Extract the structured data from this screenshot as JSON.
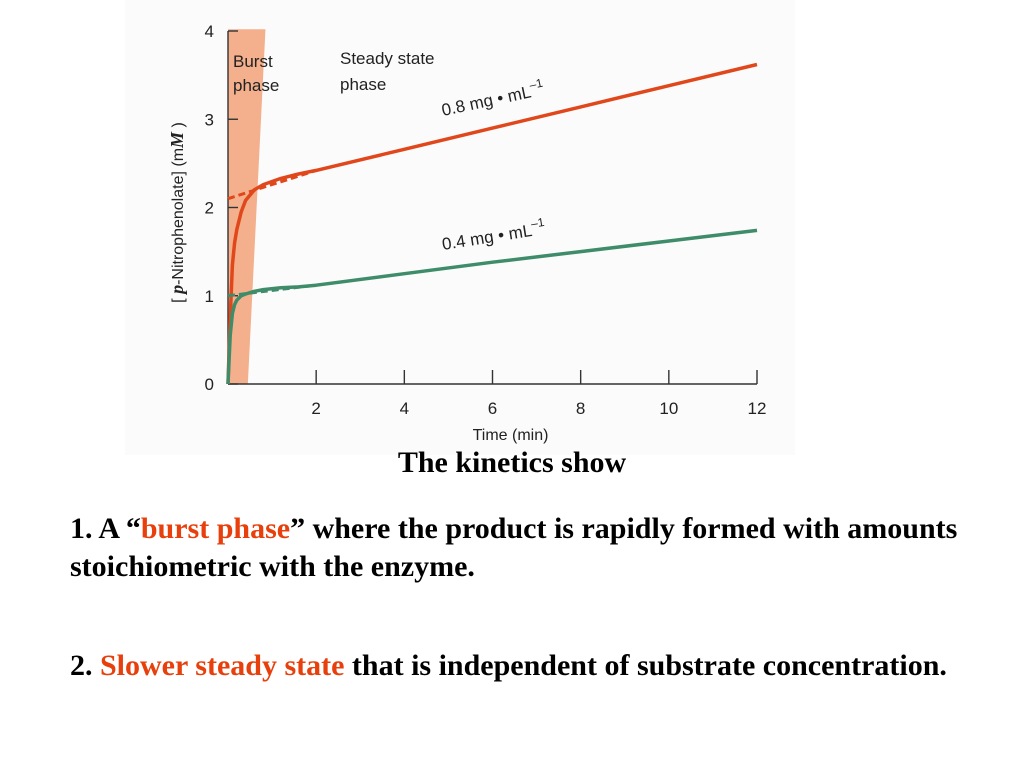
{
  "chart_data": {
    "type": "line",
    "title": "",
    "xlabel": "Time (min)",
    "ylabel": "[p-Nitrophenolate] (mM)",
    "ylabel_parts": [
      "[ ",
      "p",
      "-Nitrophenolate] (m",
      "M",
      " )"
    ],
    "xlim": [
      0,
      12
    ],
    "ylim": [
      0,
      4
    ],
    "x_ticks": [
      2,
      4,
      6,
      8,
      10,
      12
    ],
    "y_ticks": [
      0,
      1,
      2,
      3,
      4
    ],
    "grid": false,
    "regions": [
      {
        "label_line1": "Burst",
        "label_line2": "phase",
        "color": "#f4b08c"
      },
      {
        "label_line1": "Steady state",
        "label_line2": "phase"
      }
    ],
    "series": [
      {
        "name": "0.8 mg • mL",
        "superscript": "–1",
        "color": "#e0481c",
        "x": [
          0,
          0.05,
          0.1,
          0.15,
          0.2,
          0.3,
          0.4,
          0.6,
          0.8,
          1.2,
          1.6,
          2,
          4,
          6,
          8,
          10,
          12
        ],
        "y": [
          0,
          0.75,
          1.35,
          1.6,
          1.75,
          1.95,
          2.08,
          2.2,
          2.26,
          2.33,
          2.38,
          2.42,
          2.66,
          2.9,
          3.14,
          3.38,
          3.62
        ],
        "extrapolation": {
          "x": [
            0,
            2
          ],
          "y": [
            2.1,
            2.42
          ]
        }
      },
      {
        "name": "0.4 mg • mL",
        "superscript": "–1",
        "color": "#3f8c6a",
        "x": [
          0,
          0.05,
          0.1,
          0.15,
          0.2,
          0.3,
          0.4,
          0.6,
          0.8,
          1.2,
          1.6,
          2,
          4,
          6,
          8,
          10,
          12
        ],
        "y": [
          0,
          0.55,
          0.8,
          0.9,
          0.95,
          1.0,
          1.02,
          1.05,
          1.07,
          1.09,
          1.1,
          1.12,
          1.25,
          1.38,
          1.5,
          1.62,
          1.74
        ],
        "extrapolation": {
          "x": [
            0,
            2
          ],
          "y": [
            1.0,
            1.12
          ]
        }
      }
    ]
  },
  "caption": {
    "title": "The kinetics show",
    "point1": {
      "prefix": "1. A “",
      "highlight": "burst phase",
      "suffix": "” where the product is rapidly formed with amounts stoichiometric with the enzyme."
    },
    "point2": {
      "prefix": "2. ",
      "highlight": "Slower steady state",
      "suffix": " that is independent of substrate concentration."
    },
    "highlight_color": "#e8400c"
  }
}
